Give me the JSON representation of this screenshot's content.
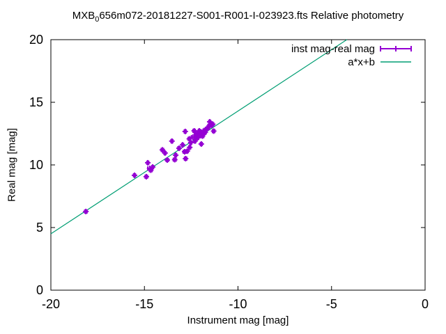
{
  "title": {
    "prefix": "MXB",
    "subscript": "0",
    "rest": "656m072-20181227-S001-R001-I-023923.fts Relative photometry"
  },
  "colors": {
    "points": "#9400d3",
    "fit_line": "#009e73",
    "border": "#000000",
    "background": "#ffffff",
    "text": "#000000"
  },
  "chart_data": {
    "type": "scatter",
    "title": "MXB_0656m072-20181227-S001-R001-I-023923.fts Relative photometry",
    "xlabel": "Instrument mag [mag]",
    "ylabel": "Real mag [mag]",
    "xlim": [
      -20,
      0
    ],
    "ylim": [
      0,
      20
    ],
    "xticks": [
      -20,
      -15,
      -10,
      -5,
      0
    ],
    "yticks": [
      0,
      5,
      10,
      15,
      20
    ],
    "grid": false,
    "legend_position": "top-right",
    "series": [
      {
        "name": "inst mag-real mag",
        "type": "xerrorbars",
        "color": "#9400d3",
        "points": [
          [
            -18.13,
            6.28,
            0.06
          ],
          [
            -15.53,
            9.17,
            0.05
          ],
          [
            -14.9,
            9.06,
            0.06
          ],
          [
            -14.82,
            10.17,
            0.05
          ],
          [
            -14.72,
            9.72,
            0.1
          ],
          [
            -14.66,
            9.58,
            0.07
          ],
          [
            -14.56,
            9.83,
            0.05
          ],
          [
            -14.04,
            11.2,
            0.06
          ],
          [
            -13.9,
            10.95,
            0.05
          ],
          [
            -13.78,
            10.39,
            0.06
          ],
          [
            -13.53,
            11.9,
            0.05
          ],
          [
            -13.38,
            10.42,
            0.07
          ],
          [
            -13.33,
            10.78,
            0.05
          ],
          [
            -13.15,
            11.33,
            0.06
          ],
          [
            -12.96,
            11.6,
            0.05
          ],
          [
            -12.85,
            11.05,
            0.07
          ],
          [
            -12.82,
            12.67,
            0.05
          ],
          [
            -12.8,
            10.5,
            0.06
          ],
          [
            -12.71,
            11.1,
            0.05
          ],
          [
            -12.6,
            12.08,
            0.06
          ],
          [
            -12.58,
            11.4,
            0.05
          ],
          [
            -12.52,
            11.78,
            0.05
          ],
          [
            -12.41,
            12.22,
            0.08
          ],
          [
            -12.34,
            12.72,
            0.06
          ],
          [
            -12.3,
            11.9,
            0.05
          ],
          [
            -12.28,
            12.05,
            0.05
          ],
          [
            -12.22,
            12.44,
            0.07
          ],
          [
            -12.15,
            12.17,
            0.05
          ],
          [
            -12.1,
            12.55,
            0.06
          ],
          [
            -12.07,
            12.72,
            0.05
          ],
          [
            -12.04,
            12.33,
            0.08
          ],
          [
            -11.98,
            12.45,
            0.05
          ],
          [
            -11.96,
            12.61,
            0.06
          ],
          [
            -11.96,
            11.67,
            0.05
          ],
          [
            -11.9,
            12.3,
            0.07
          ],
          [
            -11.85,
            12.44,
            0.05
          ],
          [
            -11.8,
            12.75,
            0.06
          ],
          [
            -11.75,
            12.6,
            0.05
          ],
          [
            -11.66,
            12.89,
            0.07
          ],
          [
            -11.6,
            12.95,
            0.05
          ],
          [
            -11.55,
            13.1,
            0.06
          ],
          [
            -11.51,
            13.44,
            0.05
          ],
          [
            -11.45,
            13.3,
            0.07
          ],
          [
            -11.4,
            13.17,
            0.05
          ],
          [
            -11.35,
            13.25,
            0.05
          ],
          [
            -11.3,
            12.7,
            0.06
          ]
        ]
      },
      {
        "name": "a*x+b",
        "type": "line",
        "color": "#009e73",
        "slope_a": 0.98,
        "intercept_b": 24.1
      }
    ]
  }
}
